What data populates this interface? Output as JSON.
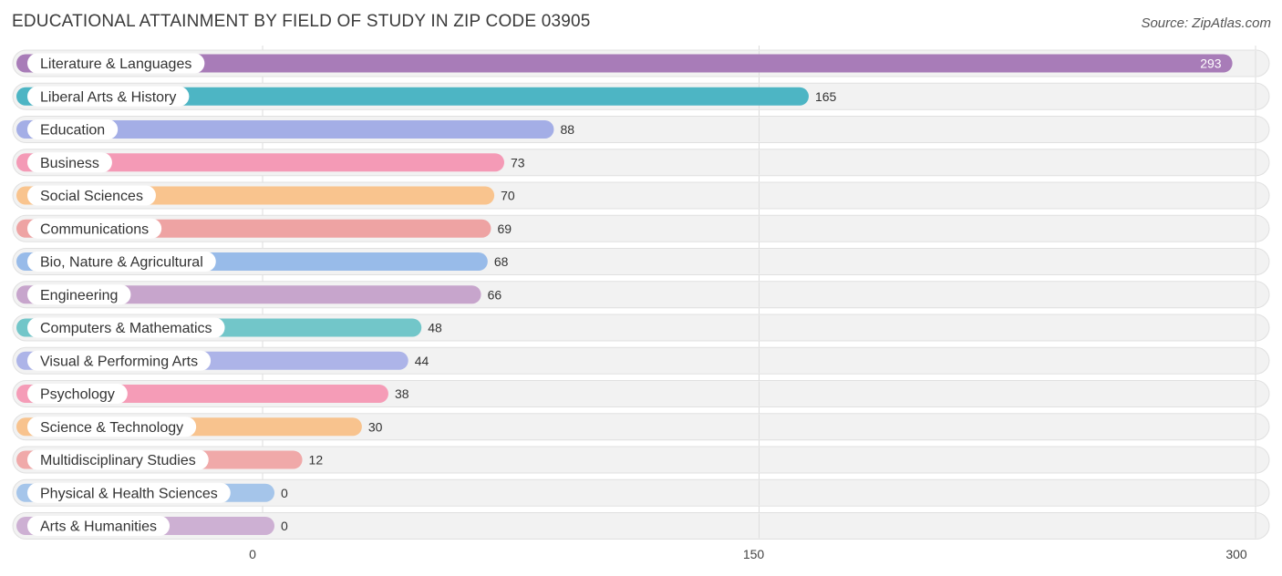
{
  "header": {
    "title": "EDUCATIONAL ATTAINMENT BY FIELD OF STUDY IN ZIP CODE 03905",
    "source": "Source: ZipAtlas.com"
  },
  "chart_data": {
    "type": "bar",
    "orientation": "horizontal",
    "title": "EDUCATIONAL ATTAINMENT BY FIELD OF STUDY IN ZIP CODE 03905",
    "xlim": [
      0,
      300
    ],
    "ticks": [
      0,
      150,
      300
    ],
    "tick_labels": [
      "0",
      "150",
      "300"
    ],
    "grid": true,
    "categories": [
      "Literature & Languages",
      "Liberal Arts & History",
      "Education",
      "Business",
      "Social Sciences",
      "Communications",
      "Bio, Nature & Agricultural",
      "Engineering",
      "Computers & Mathematics",
      "Visual & Performing Arts",
      "Psychology",
      "Science & Technology",
      "Multidisciplinary Studies",
      "Physical & Health Sciences",
      "Arts & Humanities"
    ],
    "values": [
      293,
      165,
      88,
      73,
      70,
      69,
      68,
      66,
      48,
      44,
      38,
      30,
      12,
      0,
      0
    ],
    "value_labels": [
      "293",
      "165",
      "88",
      "73",
      "70",
      "69",
      "68",
      "66",
      "48",
      "44",
      "38",
      "30",
      "12",
      "0",
      "0"
    ],
    "colors": [
      "#a87cb8",
      "#4db5c4",
      "#a4aee6",
      "#f49ab6",
      "#f9c48e",
      "#eea3a3",
      "#98bbe9",
      "#c7a5cc",
      "#72c6c9",
      "#adb4e8",
      "#f59cb7",
      "#f8c38e",
      "#f0a9a9",
      "#a5c5ea",
      "#cdb0d3"
    ]
  }
}
